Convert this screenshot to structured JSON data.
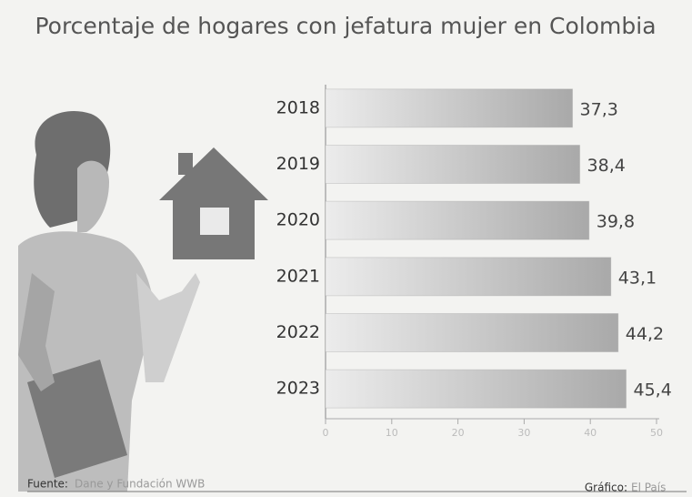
{
  "chart_data": {
    "type": "bar",
    "orientation": "horizontal",
    "title": "Porcentaje de hogares con jefatura mujer en Colombia",
    "categories": [
      "2018",
      "2019",
      "2020",
      "2021",
      "2022",
      "2023"
    ],
    "values": [
      37.3,
      38.4,
      39.8,
      43.1,
      44.2,
      45.4
    ],
    "value_labels": [
      "37,3",
      "38,4",
      "39,8",
      "43,1",
      "44,2",
      "45,4"
    ],
    "color": "#9a9a9a",
    "xlim": [
      0,
      50
    ],
    "xticks": [
      0,
      10,
      20,
      30,
      40,
      50
    ],
    "source_label": "Fuente:",
    "source": "Dane y Fundación WWB",
    "credit_label": "Gráfico:",
    "credit": "El País"
  }
}
